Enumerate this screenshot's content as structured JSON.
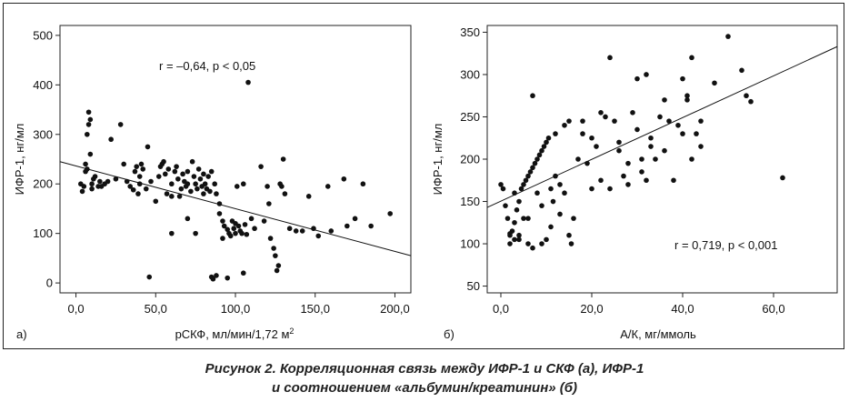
{
  "chart_data": [
    {
      "panel": "а)",
      "type": "scatter",
      "xlabel": "рСКФ, мл/мин/1,72 м",
      "xlabel_sup": "2",
      "ylabel": "ИФР-1, нг/мл",
      "xlim": [
        -10,
        210
      ],
      "ylim": [
        -20,
        520
      ],
      "xticks": [
        0,
        50,
        100,
        150,
        200
      ],
      "xtick_labels": [
        "0,0",
        "50,0",
        "100,0",
        "150,0",
        "200,0"
      ],
      "yticks": [
        0,
        100,
        200,
        300,
        400,
        500
      ],
      "ytick_labels": [
        "0",
        "100",
        "200",
        "300",
        "400",
        "500"
      ],
      "annotation": "r = –0,64, p < 0,05",
      "trendline": [
        [
          -10,
          245
        ],
        [
          210,
          55
        ]
      ],
      "points": [
        [
          3,
          200
        ],
        [
          4,
          185
        ],
        [
          5,
          195
        ],
        [
          6,
          240
        ],
        [
          6,
          225
        ],
        [
          7,
          230
        ],
        [
          7,
          300
        ],
        [
          8,
          345
        ],
        [
          8,
          320
        ],
        [
          9,
          330
        ],
        [
          9,
          260
        ],
        [
          10,
          200
        ],
        [
          10,
          190
        ],
        [
          11,
          210
        ],
        [
          12,
          215
        ],
        [
          14,
          195
        ],
        [
          15,
          205
        ],
        [
          16,
          195
        ],
        [
          18,
          200
        ],
        [
          20,
          205
        ],
        [
          22,
          290
        ],
        [
          25,
          210
        ],
        [
          28,
          320
        ],
        [
          30,
          240
        ],
        [
          32,
          205
        ],
        [
          34,
          195
        ],
        [
          36,
          188
        ],
        [
          37,
          225
        ],
        [
          38,
          235
        ],
        [
          39,
          180
        ],
        [
          40,
          215
        ],
        [
          40,
          200
        ],
        [
          41,
          240
        ],
        [
          42,
          230
        ],
        [
          44,
          190
        ],
        [
          45,
          275
        ],
        [
          46,
          12
        ],
        [
          47,
          205
        ],
        [
          50,
          165
        ],
        [
          52,
          215
        ],
        [
          53,
          235
        ],
        [
          54,
          240
        ],
        [
          55,
          245
        ],
        [
          56,
          220
        ],
        [
          57,
          180
        ],
        [
          58,
          230
        ],
        [
          60,
          200
        ],
        [
          60,
          175
        ],
        [
          62,
          225
        ],
        [
          63,
          235
        ],
        [
          64,
          210
        ],
        [
          65,
          175
        ],
        [
          66,
          190
        ],
        [
          67,
          220
        ],
        [
          68,
          205
        ],
        [
          69,
          195
        ],
        [
          70,
          225
        ],
        [
          70,
          200
        ],
        [
          72,
          185
        ],
        [
          73,
          245
        ],
        [
          74,
          215
        ],
        [
          75,
          200
        ],
        [
          76,
          190
        ],
        [
          77,
          230
        ],
        [
          78,
          210
        ],
        [
          79,
          195
        ],
        [
          80,
          220
        ],
        [
          80,
          180
        ],
        [
          81,
          200
        ],
        [
          82,
          190
        ],
        [
          83,
          215
        ],
        [
          84,
          185
        ],
        [
          85,
          225
        ],
        [
          85,
          12
        ],
        [
          86,
          8
        ],
        [
          87,
          200
        ],
        [
          88,
          180
        ],
        [
          88,
          15
        ],
        [
          90,
          160
        ],
        [
          90,
          140
        ],
        [
          92,
          125
        ],
        [
          93,
          115
        ],
        [
          95,
          108
        ],
        [
          96,
          100
        ],
        [
          97,
          95
        ],
        [
          98,
          125
        ],
        [
          99,
          110
        ],
        [
          100,
          120
        ],
        [
          100,
          100
        ],
        [
          101,
          195
        ],
        [
          102,
          115
        ],
        [
          103,
          105
        ],
        [
          104,
          100
        ],
        [
          105,
          200
        ],
        [
          106,
          118
        ],
        [
          107,
          98
        ],
        [
          108,
          405
        ],
        [
          110,
          130
        ],
        [
          112,
          110
        ],
        [
          116,
          235
        ],
        [
          118,
          125
        ],
        [
          120,
          195
        ],
        [
          121,
          160
        ],
        [
          122,
          90
        ],
        [
          124,
          70
        ],
        [
          125,
          55
        ],
        [
          126,
          25
        ],
        [
          127,
          35
        ],
        [
          128,
          200
        ],
        [
          129,
          195
        ],
        [
          130,
          250
        ],
        [
          131,
          180
        ],
        [
          134,
          110
        ],
        [
          138,
          105
        ],
        [
          142,
          105
        ],
        [
          146,
          175
        ],
        [
          149,
          110
        ],
        [
          152,
          95
        ],
        [
          158,
          195
        ],
        [
          160,
          105
        ],
        [
          168,
          210
        ],
        [
          170,
          115
        ],
        [
          175,
          130
        ],
        [
          180,
          200
        ],
        [
          185,
          115
        ],
        [
          197,
          140
        ],
        [
          60,
          100
        ],
        [
          70,
          130
        ],
        [
          75,
          100
        ],
        [
          92,
          90
        ],
        [
          95,
          10
        ],
        [
          105,
          20
        ]
      ]
    },
    {
      "panel": "б)",
      "type": "scatter",
      "xlabel": "А/К, мг/ммоль",
      "ylabel": "ИФР-1, нг/мл",
      "xlim": [
        -3,
        74
      ],
      "ylim": [
        42,
        358
      ],
      "xticks": [
        0,
        20,
        40,
        60
      ],
      "xtick_labels": [
        "0,0",
        "20,0",
        "40,0",
        "60,0"
      ],
      "yticks": [
        50,
        100,
        150,
        200,
        250,
        300,
        350
      ],
      "ytick_labels": [
        "50",
        "100",
        "150",
        "200",
        "250",
        "300",
        "350"
      ],
      "annotation": "r = 0,719, p < 0,001",
      "trendline": [
        [
          -3,
          143
        ],
        [
          74,
          333
        ]
      ],
      "points": [
        [
          0,
          170
        ],
        [
          0.5,
          165
        ],
        [
          1,
          145
        ],
        [
          1.5,
          130
        ],
        [
          2,
          110
        ],
        [
          2,
          100
        ],
        [
          2.5,
          115
        ],
        [
          3,
          105
        ],
        [
          3,
          125
        ],
        [
          3.5,
          140
        ],
        [
          4,
          110
        ],
        [
          4,
          150
        ],
        [
          4.5,
          165
        ],
        [
          5,
          170
        ],
        [
          5,
          130
        ],
        [
          5.5,
          175
        ],
        [
          6,
          100
        ],
        [
          6,
          180
        ],
        [
          6.5,
          185
        ],
        [
          7,
          95
        ],
        [
          7,
          190
        ],
        [
          7.5,
          195
        ],
        [
          8,
          200
        ],
        [
          8,
          160
        ],
        [
          8.5,
          205
        ],
        [
          9,
          210
        ],
        [
          9,
          100
        ],
        [
          9.5,
          215
        ],
        [
          10,
          220
        ],
        [
          10,
          105
        ],
        [
          10.5,
          225
        ],
        [
          11,
          165
        ],
        [
          11.5,
          150
        ],
        [
          12,
          180
        ],
        [
          12,
          230
        ],
        [
          13,
          170
        ],
        [
          13,
          135
        ],
        [
          14,
          240
        ],
        [
          14,
          160
        ],
        [
          15,
          110
        ],
        [
          15,
          245
        ],
        [
          15.5,
          100
        ],
        [
          16,
          130
        ],
        [
          17,
          200
        ],
        [
          18,
          230
        ],
        [
          19,
          195
        ],
        [
          20,
          225
        ],
        [
          21,
          215
        ],
        [
          22,
          255
        ],
        [
          22,
          175
        ],
        [
          23,
          250
        ],
        [
          24,
          320
        ],
        [
          24,
          165
        ],
        [
          25,
          245
        ],
        [
          26,
          210
        ],
        [
          27,
          180
        ],
        [
          28,
          170
        ],
        [
          29,
          255
        ],
        [
          30,
          295
        ],
        [
          30,
          235
        ],
        [
          31,
          200
        ],
        [
          32,
          300
        ],
        [
          32,
          175
        ],
        [
          33,
          225
        ],
        [
          34,
          200
        ],
        [
          35,
          250
        ],
        [
          36,
          210
        ],
        [
          37,
          245
        ],
        [
          38,
          175
        ],
        [
          39,
          240
        ],
        [
          40,
          230
        ],
        [
          40,
          295
        ],
        [
          41,
          275
        ],
        [
          41,
          270
        ],
        [
          42,
          320
        ],
        [
          42,
          200
        ],
        [
          43,
          230
        ],
        [
          44,
          215
        ],
        [
          44,
          245
        ],
        [
          47,
          290
        ],
        [
          50,
          345
        ],
        [
          53,
          305
        ],
        [
          54,
          275
        ],
        [
          55,
          268
        ],
        [
          62,
          178
        ],
        [
          28,
          195
        ],
        [
          31,
          185
        ],
        [
          18,
          245
        ],
        [
          6,
          130
        ],
        [
          4,
          105
        ],
        [
          2,
          112
        ],
        [
          36,
          270
        ],
        [
          33,
          215
        ],
        [
          26,
          220
        ],
        [
          9,
          145
        ],
        [
          11,
          120
        ],
        [
          7,
          275
        ],
        [
          3,
          160
        ],
        [
          20,
          165
        ]
      ]
    }
  ],
  "caption": {
    "line1": "Рисунок 2.  Корреляционная связь между ИФР-1 и СКФ (а), ИФР-1",
    "line2": "и соотношением «альбумин/креатинин» (б)"
  }
}
